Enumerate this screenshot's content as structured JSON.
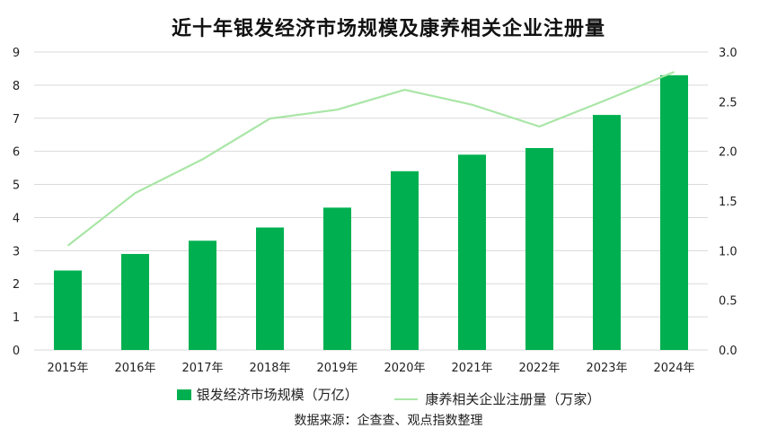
{
  "chart_data": {
    "type": "bar",
    "title": "近十年银发经济市场规模及康养相关企业注册量",
    "categories": [
      "2015年",
      "2016年",
      "2017年",
      "2018年",
      "2019年",
      "2020年",
      "2021年",
      "2022年",
      "2023年",
      "2024年"
    ],
    "series": [
      {
        "name": "银发经济市场规模（万亿）",
        "type": "bar",
        "axis": "left",
        "values": [
          2.4,
          2.9,
          3.3,
          3.7,
          4.3,
          5.4,
          5.9,
          6.1,
          7.1,
          8.3
        ],
        "color": "#00B050"
      },
      {
        "name": "康养相关企业注册量（万家）",
        "type": "line",
        "axis": "right",
        "values": [
          1.05,
          1.58,
          1.92,
          2.33,
          2.42,
          2.62,
          2.47,
          2.25,
          2.52,
          2.8
        ],
        "color": "#A9E6A6"
      }
    ],
    "ylim_left": [
      0,
      9
    ],
    "yticks_left": [
      "0",
      "1",
      "2",
      "3",
      "4",
      "5",
      "6",
      "7",
      "8",
      "9"
    ],
    "ylim_right": [
      0,
      3
    ],
    "yticks_right": [
      "0.0",
      "0.5",
      "1.0",
      "1.5",
      "2.0",
      "2.5",
      "3.0"
    ],
    "grid": true,
    "legend_position": "bottom"
  },
  "source_text": "数据来源：企查查、观点指数整理"
}
